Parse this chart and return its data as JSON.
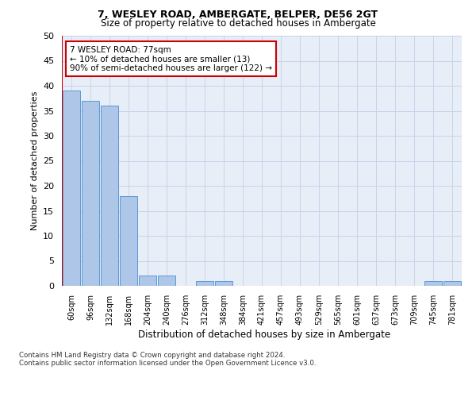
{
  "title": "7, WESLEY ROAD, AMBERGATE, BELPER, DE56 2GT",
  "subtitle": "Size of property relative to detached houses in Ambergate",
  "xlabel": "Distribution of detached houses by size in Ambergate",
  "ylabel": "Number of detached properties",
  "categories": [
    "60sqm",
    "96sqm",
    "132sqm",
    "168sqm",
    "204sqm",
    "240sqm",
    "276sqm",
    "312sqm",
    "348sqm",
    "384sqm",
    "421sqm",
    "457sqm",
    "493sqm",
    "529sqm",
    "565sqm",
    "601sqm",
    "637sqm",
    "673sqm",
    "709sqm",
    "745sqm",
    "781sqm"
  ],
  "values": [
    39,
    37,
    36,
    18,
    2,
    2,
    0,
    1,
    1,
    0,
    0,
    0,
    0,
    0,
    0,
    0,
    0,
    0,
    0,
    1,
    1
  ],
  "bar_color": "#aec6e8",
  "bar_edge_color": "#5b9bd5",
  "highlight_color": "#cc0000",
  "annotation_text": "7 WESLEY ROAD: 77sqm\n← 10% of detached houses are smaller (13)\n90% of semi-detached houses are larger (122) →",
  "annotation_box_color": "#ffffff",
  "annotation_box_edge": "#cc0000",
  "ylim": [
    0,
    50
  ],
  "yticks": [
    0,
    5,
    10,
    15,
    20,
    25,
    30,
    35,
    40,
    45,
    50
  ],
  "grid_color": "#c8d4e8",
  "bg_color": "#e8eef8",
  "footer": "Contains HM Land Registry data © Crown copyright and database right 2024.\nContains public sector information licensed under the Open Government Licence v3.0."
}
